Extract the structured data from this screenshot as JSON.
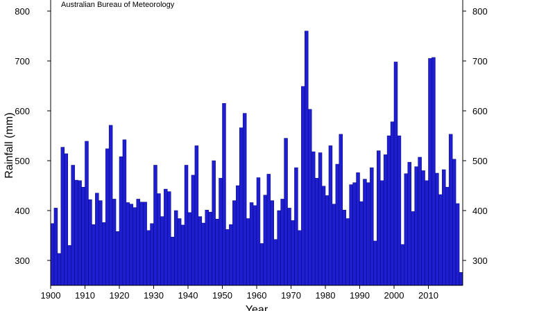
{
  "chart_data": {
    "type": "bar",
    "source_note": "Australian Bureau of Meteorology",
    "xlabel": "Year",
    "ylabel": "Rainfall (mm)",
    "ylim": [
      250,
      820
    ],
    "xlim": [
      1900,
      2019
    ],
    "yticks": [
      300,
      400,
      500,
      600,
      700,
      800
    ],
    "xticks": [
      1900,
      1910,
      1920,
      1930,
      1940,
      1950,
      1960,
      1970,
      1980,
      1990,
      2000,
      2010
    ],
    "bar_color": "#1f1fcf",
    "grid": false,
    "series": [
      {
        "x": [
          1900,
          1901,
          1902,
          1903,
          1904,
          1905,
          1906,
          1907,
          1908,
          1909,
          1910,
          1911,
          1912,
          1913,
          1914,
          1915,
          1916,
          1917,
          1918,
          1919,
          1920,
          1921,
          1922,
          1923,
          1924,
          1925,
          1926,
          1927,
          1928,
          1929,
          1930,
          1931,
          1932,
          1933,
          1934,
          1935,
          1936,
          1937,
          1938,
          1939,
          1940,
          1941,
          1942,
          1943,
          1944,
          1945,
          1946,
          1947,
          1948,
          1949,
          1950,
          1951,
          1952,
          1953,
          1954,
          1955,
          1956,
          1957,
          1958,
          1959,
          1960,
          1961,
          1962,
          1963,
          1964,
          1965,
          1966,
          1967,
          1968,
          1969,
          1970,
          1971,
          1972,
          1973,
          1974,
          1975,
          1976,
          1977,
          1978,
          1979,
          1980,
          1981,
          1982,
          1983,
          1984,
          1985,
          1986,
          1987,
          1988,
          1989,
          1990,
          1991,
          1992,
          1993,
          1994,
          1995,
          1996,
          1997,
          1998,
          1999,
          2000,
          2001,
          2002,
          2003,
          2004,
          2005,
          2006,
          2007,
          2008,
          2009,
          2010,
          2011,
          2012,
          2013,
          2014,
          2015,
          2016,
          2017,
          2018,
          2019
        ],
        "values": [
          374,
          405,
          314,
          527,
          514,
          330,
          491,
          461,
          460,
          447,
          539,
          422,
          372,
          435,
          420,
          376,
          524,
          571,
          423,
          358,
          508,
          542,
          416,
          413,
          406,
          423,
          417,
          417,
          360,
          374,
          491,
          434,
          388,
          443,
          438,
          347,
          400,
          384,
          371,
          491,
          396,
          471,
          530,
          388,
          375,
          401,
          397,
          500,
          383,
          465,
          615,
          362,
          372,
          420,
          450,
          566,
          595,
          384,
          416,
          410,
          466,
          334,
          431,
          473,
          420,
          342,
          400,
          423,
          545,
          405,
          380,
          486,
          360,
          649,
          760,
          603,
          518,
          465,
          516,
          449,
          430,
          530,
          413,
          493,
          553,
          401,
          384,
          452,
          456,
          476,
          418,
          463,
          456,
          486,
          339,
          520,
          460,
          512,
          550,
          578,
          698,
          550,
          332,
          474,
          497,
          398,
          488,
          507,
          480,
          460,
          705,
          707,
          475,
          432,
          482,
          447,
          553,
          503,
          414,
          276
        ]
      }
    ]
  }
}
